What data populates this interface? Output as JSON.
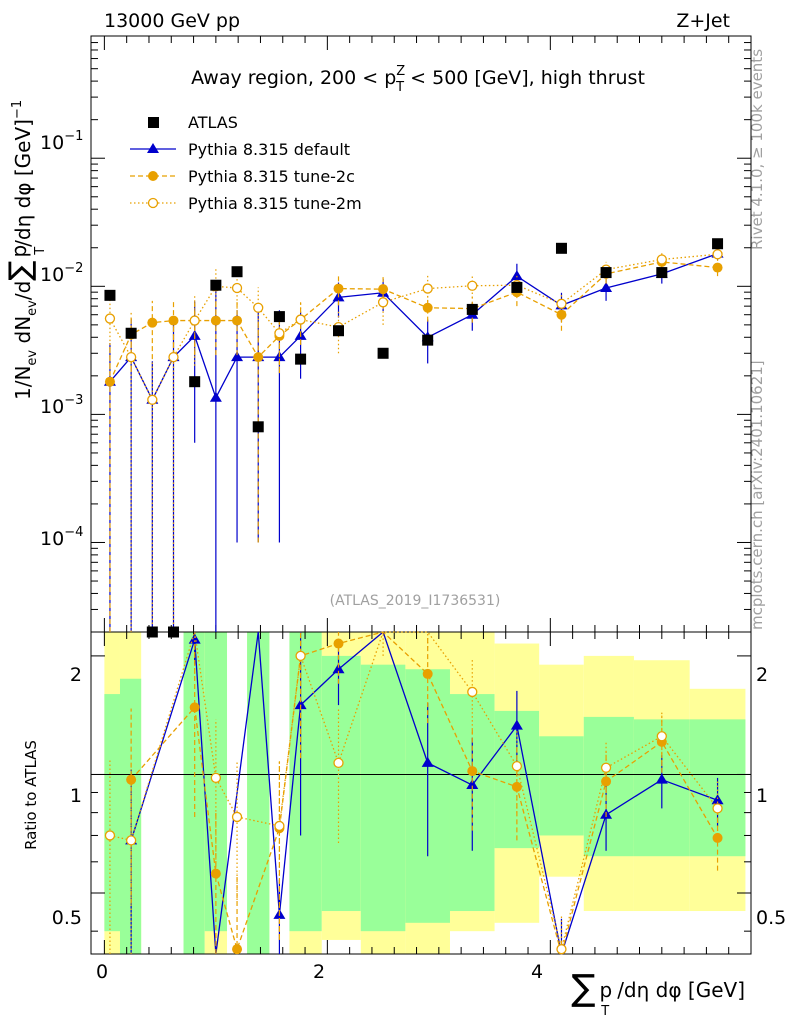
{
  "header": {
    "energy_label": "13000 GeV pp",
    "process_label": "Z+Jet"
  },
  "side_labels": {
    "rivet": "Rivet 4.1.0, ≥ 100k events",
    "mcplots": "mcplots.cern.ch [arXiv:2401.10621]"
  },
  "chart_data": {
    "type": "line",
    "title": "Away region, 200 < p_T^Z < 500 [GeV], high thrust",
    "analysis_id": "(ATLAS_2019_I1736531)",
    "xlabel": "∑ p_T /dη dφ [GeV]",
    "ylabel": "1/N_ev dN_ev/d∑ p_T /dη dφ [GeV]^-1",
    "ratio_ylabel": "Ratio to ATLAS",
    "xlim": [
      -0.12,
      5.8
    ],
    "ylim": [
      2e-05,
      0.9
    ],
    "ratio_ylim": [
      0.35,
      2.3
    ],
    "x_ticks": [
      "0",
      "2",
      "4"
    ],
    "y_ticks": [
      "10^-4",
      "10^-3",
      "10^-2",
      "10^-1"
    ],
    "ratio_ticks": [
      "0.5",
      "1",
      "2"
    ],
    "y_tick_parts": [
      {
        "base": "10",
        "exp": "−4"
      },
      {
        "base": "10",
        "exp": "−3"
      },
      {
        "base": "10",
        "exp": "−2"
      },
      {
        "base": "10",
        "exp": "−1"
      }
    ],
    "axis_label_parts": {
      "ylabel_a": "1/N",
      "ylabel_sub1": "ev",
      "ylabel_b": " dN",
      "ylabel_sub2": "ev",
      "ylabel_c": "/d",
      "ylabel_sum": "∑",
      "ylabel_p": "p",
      "ylabel_subT": "T",
      "ylabel_d": "/dη dφ  [GeV]",
      "ylabel_exp": "−1",
      "xlabel_sum": "∑",
      "xlabel_p": "p",
      "xlabel_subT": "T",
      "xlabel_rest": "/dη dφ [GeV]",
      "title_a": "Away region, 200 < p",
      "title_sup": "Z",
      "title_sub": "T",
      "title_b": " < 500 [GeV], high thrust"
    },
    "legend": [
      {
        "label": "ATLAS",
        "color": "#000000",
        "marker": "square"
      },
      {
        "label": "Pythia 8.315 default",
        "color": "#0000cc",
        "marker": "triangle"
      },
      {
        "label": "Pythia 8.315 tune-2c",
        "color": "#e8a000",
        "marker": "circle"
      },
      {
        "label": "Pythia 8.315 tune-2m",
        "color": "#e8a000",
        "marker": "open-circle"
      }
    ],
    "series": [
      {
        "name": "ATLAS",
        "color": "#000000",
        "x": [
          0.05,
          0.24,
          0.43,
          0.62,
          0.81,
          1.0,
          1.19,
          1.38,
          1.57,
          1.76,
          2.1,
          2.5,
          2.9,
          3.3,
          3.7,
          4.1,
          4.5,
          5.0,
          5.5
        ],
        "values": [
          0.0085,
          0.0043,
          1.5e-05,
          1.5e-05,
          0.0018,
          0.0102,
          0.013,
          0.0008,
          0.0058,
          0.0027,
          0.0045,
          0.003,
          0.0038,
          0.0066,
          0.0098,
          0.0198,
          0.0128,
          0.0128,
          0.0215
        ]
      },
      {
        "name": "Pythia 8.315 default",
        "color": "#0000cc",
        "x": [
          0.05,
          0.24,
          0.43,
          0.62,
          0.81,
          1.0,
          1.19,
          1.38,
          1.57,
          1.76,
          2.1,
          2.5,
          2.9,
          3.3,
          3.7,
          4.1,
          4.5,
          5.0,
          5.5
        ],
        "values": [
          0.0018,
          0.0028,
          0.0013,
          0.0028,
          0.0041,
          0.00135,
          0.0028,
          0.0028,
          0.0028,
          0.0041,
          0.0082,
          0.0089,
          0.004,
          0.006,
          0.012,
          0.0071,
          0.0097,
          0.0125,
          0.018
        ],
        "err_lo": [
          0.0018,
          0.0028,
          0.0013,
          0.0028,
          0.0035,
          0.00135,
          0.0027,
          0.0027,
          0.0027,
          0.0022,
          0.0025,
          0.0025,
          0.0015,
          0.0015,
          0.003,
          0.0018,
          0.002,
          0.002,
          0.002
        ],
        "err_hi": [
          0.0018,
          0.0028,
          0.0013,
          0.0028,
          0.0035,
          0.0085,
          0.0037,
          0.0037,
          0.0037,
          0.0022,
          0.0025,
          0.0025,
          0.0015,
          0.0015,
          0.003,
          0.0018,
          0.002,
          0.002,
          0.002
        ]
      },
      {
        "name": "Pythia 8.315 tune-2c",
        "color": "#e8a000",
        "x": [
          0.05,
          0.24,
          0.43,
          0.62,
          0.81,
          1.0,
          1.19,
          1.38,
          1.57,
          1.76,
          2.1,
          2.5,
          2.9,
          3.3,
          3.7,
          4.1,
          4.5,
          5.0,
          5.5
        ],
        "values": [
          0.0018,
          0.0042,
          0.0052,
          0.0054,
          0.0054,
          0.0054,
          0.0054,
          0.0028,
          0.0041,
          0.0055,
          0.0096,
          0.0095,
          0.0068,
          0.0067,
          0.009,
          0.006,
          0.0125,
          0.0155,
          0.014
        ],
        "err_lo": [
          0.0018,
          0.002,
          0.0025,
          0.0025,
          0.0025,
          0.0025,
          0.0025,
          0.0027,
          0.002,
          0.002,
          0.0025,
          0.0025,
          0.0015,
          0.0015,
          0.002,
          0.0015,
          0.002,
          0.002,
          0.002
        ],
        "err_hi": [
          0.0018,
          0.002,
          0.0025,
          0.0025,
          0.0025,
          0.0025,
          0.0025,
          0.0027,
          0.002,
          0.002,
          0.0025,
          0.0025,
          0.0015,
          0.0015,
          0.002,
          0.0015,
          0.002,
          0.002,
          0.002
        ]
      },
      {
        "name": "Pythia 8.315 tune-2m",
        "color": "#e8a000",
        "x": [
          0.05,
          0.24,
          0.43,
          0.62,
          0.81,
          1.0,
          1.19,
          1.38,
          1.57,
          1.76,
          2.1,
          2.5,
          2.9,
          3.3,
          3.7,
          4.1,
          4.5,
          5.0,
          5.5
        ],
        "values": [
          0.0056,
          0.0028,
          0.0013,
          0.0028,
          0.0054,
          0.01,
          0.0097,
          0.0068,
          0.0043,
          0.0055,
          0.0048,
          0.0075,
          0.0096,
          0.0101,
          0.0102,
          0.0073,
          0.0135,
          0.0162,
          0.0178
        ],
        "err_lo": [
          0.0035,
          0.0028,
          0.0013,
          0.0028,
          0.003,
          0.004,
          0.003,
          0.003,
          0.002,
          0.002,
          0.0018,
          0.0025,
          0.0025,
          0.002,
          0.002,
          0.0015,
          0.002,
          0.002,
          0.002
        ],
        "err_hi": [
          0.0035,
          0.0028,
          0.0013,
          0.0028,
          0.003,
          0.004,
          0.003,
          0.003,
          0.002,
          0.002,
          0.0018,
          0.0025,
          0.0025,
          0.002,
          0.002,
          0.0015,
          0.002,
          0.002,
          0.002
        ]
      }
    ],
    "ratio_bands": [
      {
        "x0": 0.0,
        "x1": 0.14,
        "y_lo": 0.35,
        "y_hi": 2.3,
        "inner_lo": 0.4,
        "inner_hi": 1.6
      },
      {
        "x0": 0.14,
        "x1": 0.33,
        "y_lo": 0.35,
        "y_hi": 2.3,
        "inner_lo": 0.35,
        "inner_hi": 1.75
      },
      {
        "x0": 0.71,
        "x1": 0.9,
        "y_lo": 0.35,
        "y_hi": 2.3,
        "inner_lo": 0.35,
        "inner_hi": 2.3
      },
      {
        "x0": 0.9,
        "x1": 1.1,
        "y_lo": 0.35,
        "y_hi": 2.3,
        "inner_lo": 0.4,
        "inner_hi": 2.3
      },
      {
        "x0": 1.28,
        "x1": 1.48,
        "y_lo": 0.35,
        "y_hi": 2.3,
        "inner_lo": 0.35,
        "inner_hi": 2.3
      },
      {
        "x0": 1.66,
        "x1": 1.95,
        "y_lo": 0.35,
        "y_hi": 2.3,
        "inner_lo": 0.4,
        "inner_hi": 2.3
      },
      {
        "x0": 1.95,
        "x1": 2.3,
        "y_lo": 0.38,
        "y_hi": 2.3,
        "inner_lo": 0.45,
        "inner_hi": 2.0
      },
      {
        "x0": 2.3,
        "x1": 2.7,
        "y_lo": 0.35,
        "y_hi": 2.3,
        "inner_lo": 0.4,
        "inner_hi": 1.9
      },
      {
        "x0": 2.7,
        "x1": 3.1,
        "y_lo": 0.35,
        "y_hi": 2.3,
        "inner_lo": 0.42,
        "inner_hi": 1.85
      },
      {
        "x0": 3.1,
        "x1": 3.5,
        "y_lo": 0.4,
        "y_hi": 2.3,
        "inner_lo": 0.45,
        "inner_hi": 1.6
      },
      {
        "x0": 3.5,
        "x1": 3.9,
        "y_lo": 0.42,
        "y_hi": 2.15,
        "inner_lo": 0.65,
        "inner_hi": 1.45
      },
      {
        "x0": 3.9,
        "x1": 4.3,
        "y_lo": 0.55,
        "y_hi": 1.9,
        "inner_lo": 0.7,
        "inner_hi": 1.25
      },
      {
        "x0": 4.3,
        "x1": 4.75,
        "y_lo": 0.45,
        "y_hi": 2.0,
        "inner_lo": 0.62,
        "inner_hi": 1.4
      },
      {
        "x0": 4.75,
        "x1": 5.25,
        "y_lo": 0.45,
        "y_hi": 1.95,
        "inner_lo": 0.62,
        "inner_hi": 1.38
      },
      {
        "x0": 5.25,
        "x1": 5.75,
        "y_lo": 0.45,
        "y_hi": 1.65,
        "inner_lo": 0.62,
        "inner_hi": 1.38
      }
    ],
    "ratio_series": [
      {
        "name": "Pythia 8.315 default",
        "color": "#0000cc",
        "x": [
          0.24,
          0.81,
          1.0,
          1.38,
          1.57,
          1.76,
          2.1,
          2.5,
          2.9,
          3.3,
          3.7,
          4.1,
          4.5,
          5.0,
          5.5
        ],
        "values": [
          0.68,
          2.2,
          0.13,
          4.0,
          0.44,
          1.5,
          1.85,
          3.0,
          1.07,
          0.94,
          1.33,
          0.33,
          0.79,
          0.97,
          0.86
        ],
        "err": [
          0.35,
          0.3,
          0.2,
          1.0,
          0.1,
          0.8,
          0.35,
          0.4,
          0.45,
          0.3,
          0.3,
          0.1,
          0.15,
          0.15,
          0.12
        ]
      },
      {
        "name": "Pythia 8.315 tune-2c",
        "color": "#e8a000",
        "x": [
          0.24,
          0.81,
          1.0,
          1.19,
          1.57,
          1.76,
          2.1,
          2.5,
          2.9,
          3.3,
          3.7,
          4.1,
          4.5,
          5.0,
          5.5
        ],
        "values": [
          0.97,
          1.48,
          0.56,
          0.36,
          0.73,
          2.0,
          2.15,
          3.1,
          1.8,
          1.02,
          0.93,
          0.3,
          0.96,
          1.21,
          0.69
        ],
        "err": [
          0.5,
          0.7,
          0.25,
          0.2,
          0.35,
          0.9,
          0.45,
          0.5,
          0.45,
          0.3,
          0.25,
          0.08,
          0.18,
          0.2,
          0.12
        ]
      },
      {
        "name": "Pythia 8.315 tune-2m",
        "color": "#e8a000",
        "x": [
          0.05,
          0.24,
          0.81,
          1.0,
          1.19,
          1.57,
          1.76,
          2.1,
          2.5,
          2.9,
          3.3,
          3.7,
          4.1,
          4.5,
          5.0,
          5.5
        ],
        "values": [
          0.7,
          0.68,
          3.0,
          0.98,
          0.78,
          0.74,
          2.0,
          1.07,
          2.5,
          2.8,
          1.62,
          1.05,
          0.36,
          1.04,
          1.25,
          0.82
        ],
        "err": [
          0.4,
          0.35,
          1.2,
          0.4,
          0.3,
          0.35,
          0.9,
          0.4,
          0.5,
          0.7,
          0.35,
          0.25,
          0.08,
          0.18,
          0.2,
          0.15
        ]
      }
    ]
  }
}
